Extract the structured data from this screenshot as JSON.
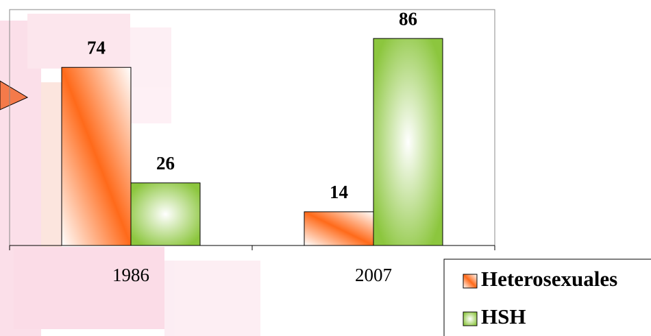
{
  "chart_data": {
    "type": "bar",
    "categories": [
      "1986",
      "2007"
    ],
    "series": [
      {
        "name": "Heterosexuales",
        "color": "#ff6a1a",
        "values": [
          74,
          14
        ]
      },
      {
        "name": "HSH",
        "color": "#8cc63e",
        "values": [
          26,
          86
        ]
      }
    ],
    "ylim": [
      0,
      98
    ],
    "legend": "bottom-right"
  }
}
